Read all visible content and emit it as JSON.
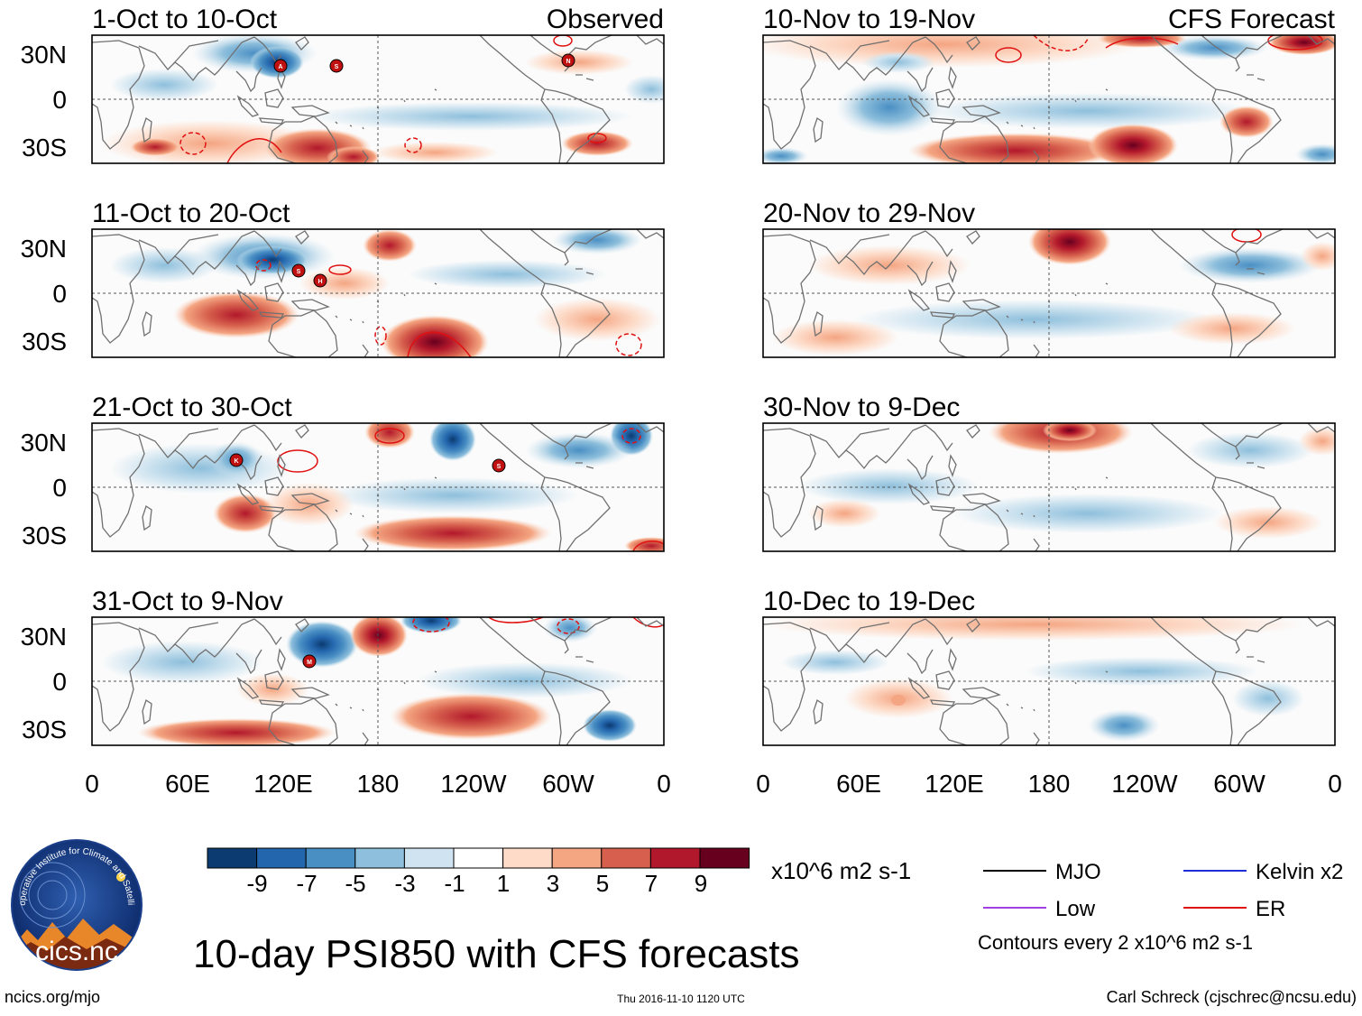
{
  "panels": [
    {
      "dates": "1-Oct to 10-Oct",
      "label": "Observed"
    },
    {
      "dates": "11-Oct to 20-Oct",
      "label": ""
    },
    {
      "dates": "21-Oct to 30-Oct",
      "label": ""
    },
    {
      "dates": "31-Oct to 9-Nov",
      "label": ""
    },
    {
      "dates": "10-Nov to 19-Nov",
      "label": "CFS Forecast"
    },
    {
      "dates": "20-Nov to 29-Nov",
      "label": ""
    },
    {
      "dates": "30-Nov to 9-Dec",
      "label": ""
    },
    {
      "dates": "10-Dec to 19-Dec",
      "label": ""
    }
  ],
  "lat_labels": [
    "30N",
    "0",
    "30S"
  ],
  "lon_labels": [
    "0",
    "60E",
    "120E",
    "180",
    "120W",
    "60W",
    "0"
  ],
  "storms": {
    "p1": [
      "A",
      "S",
      "N"
    ],
    "p2": [
      "S",
      "H"
    ],
    "p3": [
      "K",
      "S"
    ],
    "p4": [
      "M"
    ]
  },
  "colorbar": {
    "ticks": [
      "-9",
      "-7",
      "-5",
      "-3",
      "-1",
      "1",
      "3",
      "5",
      "7",
      "9"
    ],
    "colors": [
      "#0b3b70",
      "#2466ad",
      "#4a8fc4",
      "#8ebfdc",
      "#cfe4f0",
      "#ffffff",
      "#fddbc8",
      "#f4a582",
      "#d6604d",
      "#b2182b",
      "#67001f"
    ],
    "units": "x10^6 m2 s-1"
  },
  "legend": {
    "mjo": "MJO",
    "kelvin": "Kelvin x2",
    "low": "Low",
    "er": "ER",
    "mjo_color": "#000000",
    "kelvin_color": "#1f2fd8",
    "low_color": "#a040e0",
    "er_color": "#e01010",
    "contours": "Contours every 2 x10^6 m2 s-1"
  },
  "title": "10-day PSI850 with CFS forecasts",
  "logo_text": "cics.nc",
  "logo_ring_text": "Cooperative Institute for Climate and Satellites",
  "footer": {
    "website": "ncics.org/mjo",
    "timestamp": "Thu 2016-11-10 1120 UTC",
    "author": "Carl Schreck (cjschrec@ncsu.edu)"
  }
}
